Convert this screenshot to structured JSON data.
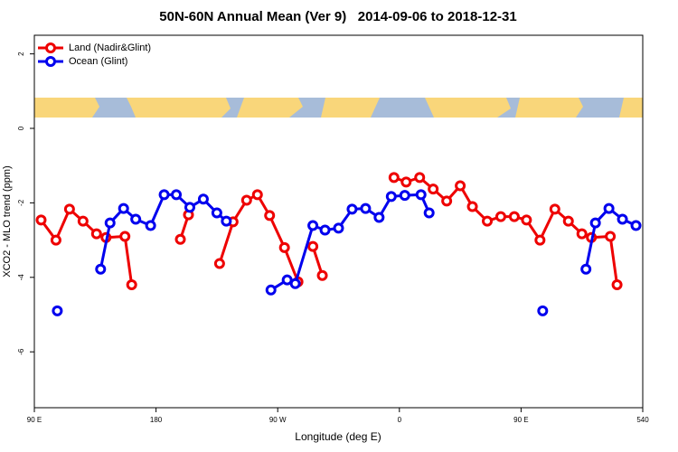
{
  "chart_data": {
    "type": "line",
    "title": "50N-60N Annual Mean (Ver 9)   2014-09-06 to 2018-12-31",
    "x_label": "Longitude (deg E)",
    "y_label": "XCO2 - MLO trend (ppm)",
    "xlim": [
      90,
      540
    ],
    "ylim": [
      -7.5,
      2.5
    ],
    "xticks": [
      {
        "value": 90,
        "label": "90 E"
      },
      180,
      {
        "value": 270,
        "label": "90 W"
      },
      {
        "value": 360,
        "label": "0"
      },
      {
        "value": 450,
        "label": "90 E"
      },
      540
    ],
    "yticks": [
      -6,
      -4,
      -2,
      0,
      2
    ],
    "legend": "top-left",
    "series": [
      {
        "name": "Land (Nadir&Glint)",
        "color": "#ee0000",
        "x": [
          95,
          106,
          116,
          126,
          136,
          143,
          157,
          162,
          null,
          198,
          204,
          null,
          227,
          237,
          247,
          255,
          264,
          275,
          285,
          null,
          296,
          303,
          null,
          356,
          365,
          375,
          385,
          395,
          405,
          414,
          425,
          435,
          445,
          454,
          464,
          475,
          485,
          495,
          502,
          516,
          521
        ],
        "values": [
          -2.46,
          -3.0,
          -2.17,
          -2.49,
          -2.83,
          -2.93,
          -2.9,
          -4.2,
          null,
          -2.98,
          -2.32,
          null,
          -3.63,
          -2.51,
          -1.93,
          -1.78,
          -2.34,
          -3.2,
          -4.12,
          null,
          -3.17,
          -3.95,
          null,
          -1.32,
          -1.44,
          -1.32,
          -1.63,
          -1.95,
          -1.54,
          -2.1,
          -2.49,
          -2.37,
          -2.37,
          -2.46,
          -3.0,
          -2.17,
          -2.49,
          -2.83,
          -2.93,
          -2.9,
          -4.2
        ]
      },
      {
        "name": "Ocean (Glint)",
        "color": "#0000ee",
        "x": [
          107,
          null,
          139,
          146,
          156,
          165,
          176,
          186,
          195,
          205,
          215,
          225,
          232,
          null,
          265,
          277,
          283,
          296,
          305,
          315,
          325,
          335,
          345,
          354,
          364,
          376,
          382,
          null,
          466,
          null,
          498,
          505,
          515,
          525,
          535
        ],
        "values": [
          -4.9,
          null,
          -3.78,
          -2.54,
          -2.15,
          -2.44,
          -2.61,
          -1.78,
          -1.78,
          -2.12,
          -1.9,
          -2.27,
          -2.49,
          null,
          -4.34,
          -4.07,
          -4.17,
          -2.61,
          -2.73,
          -2.68,
          -2.17,
          -2.15,
          -2.39,
          -1.83,
          -1.8,
          -1.78,
          -2.27,
          null,
          -4.9,
          null,
          -3.78,
          -2.54,
          -2.15,
          -2.44,
          -2.61
        ]
      }
    ]
  }
}
